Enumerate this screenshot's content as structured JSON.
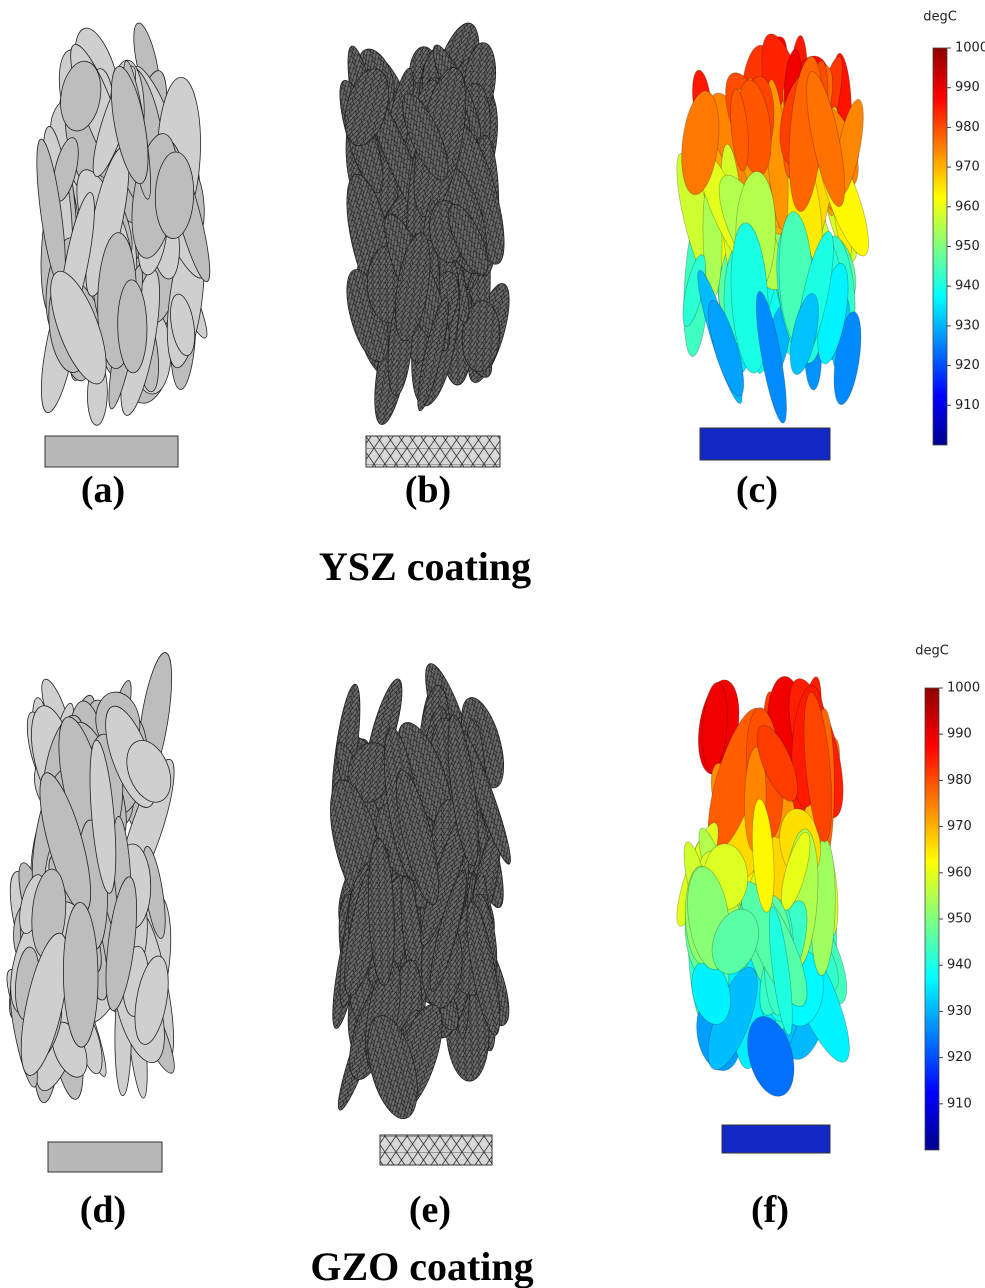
{
  "panels": [
    {
      "label": "(a)"
    },
    {
      "label": "(b)"
    },
    {
      "label": "(c)"
    },
    {
      "label": "(d)"
    },
    {
      "label": "(e)"
    },
    {
      "label": "(f)"
    }
  ],
  "groups": [
    {
      "caption": "YSZ coating",
      "colorbar": {
        "unit": "degC",
        "lim": [
          900,
          1000
        ],
        "ticks": [
          910,
          920,
          930,
          940,
          950,
          960,
          970,
          980,
          990,
          1000
        ]
      }
    },
    {
      "caption": "GZO coating",
      "colorbar": {
        "unit": "degC",
        "lim": [
          900,
          1000
        ],
        "ticks": [
          910,
          920,
          930,
          940,
          950,
          960,
          970,
          980,
          990,
          1000
        ]
      }
    }
  ]
}
